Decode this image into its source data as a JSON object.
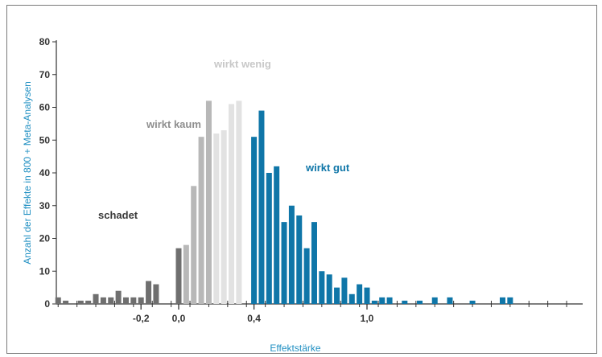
{
  "chart_data": {
    "type": "bar",
    "xlabel": "Effektstärke",
    "ylabel": "Anzahl der Effekte in 800 + Meta-Analysen",
    "ylim": [
      0,
      80
    ],
    "y_ticks": [
      "0",
      "10",
      "20",
      "30",
      "40",
      "50",
      "60",
      "70",
      "80"
    ],
    "x_ticks": [
      {
        "label": "-0,2",
        "value": -0.2
      },
      {
        "label": "0,0",
        "value": 0.0
      },
      {
        "label": "0,4",
        "value": 0.4
      },
      {
        "label": "1,0",
        "value": 1.0
      }
    ],
    "grid": false,
    "annotations": [
      {
        "text": "schadet",
        "color": "#3a3a3a"
      },
      {
        "text": "wirkt kaum",
        "color": "#8e8e8e"
      },
      {
        "text": "wirkt wenig",
        "color": "#c8c8c8"
      },
      {
        "text": "wirkt gut",
        "color": "#0f76a8"
      }
    ],
    "series": [
      {
        "group": "schadet",
        "color": "#6f6f6f",
        "x": [
          -0.64,
          -0.6,
          -0.56,
          -0.52,
          -0.48,
          -0.44,
          -0.4,
          -0.36,
          -0.32,
          -0.28,
          -0.24,
          -0.2,
          -0.16,
          -0.12,
          -0.08,
          -0.04,
          0.0
        ],
        "values": [
          2,
          1,
          0,
          1,
          1,
          3,
          2,
          2,
          4,
          2,
          2,
          2,
          7,
          6,
          0,
          0,
          17
        ]
      },
      {
        "group": "wirkt kaum",
        "color": "#b8b8b8",
        "x": [
          0.04,
          0.08,
          0.12,
          0.16
        ],
        "values": [
          18,
          36,
          51,
          62
        ]
      },
      {
        "group": "wirkt wenig",
        "color": "#e2e2e2",
        "x": [
          0.2,
          0.24,
          0.28,
          0.32
        ],
        "values": [
          52,
          53,
          61,
          62
        ]
      },
      {
        "group": "wirkt gut",
        "color": "#0f76a8",
        "x": [
          0.4,
          0.44,
          0.48,
          0.52,
          0.56,
          0.6,
          0.64,
          0.68,
          0.72,
          0.76,
          0.8,
          0.84,
          0.88,
          0.92,
          0.96,
          1.0,
          1.04,
          1.08,
          1.12,
          1.16,
          1.2,
          1.28,
          1.36,
          1.44,
          1.56,
          1.72,
          1.76
        ],
        "values": [
          51,
          59,
          40,
          42,
          25,
          30,
          27,
          17,
          25,
          10,
          9,
          5,
          8,
          3,
          6,
          5,
          1,
          2,
          2,
          0,
          1,
          1,
          2,
          2,
          1,
          2,
          2
        ]
      }
    ]
  }
}
